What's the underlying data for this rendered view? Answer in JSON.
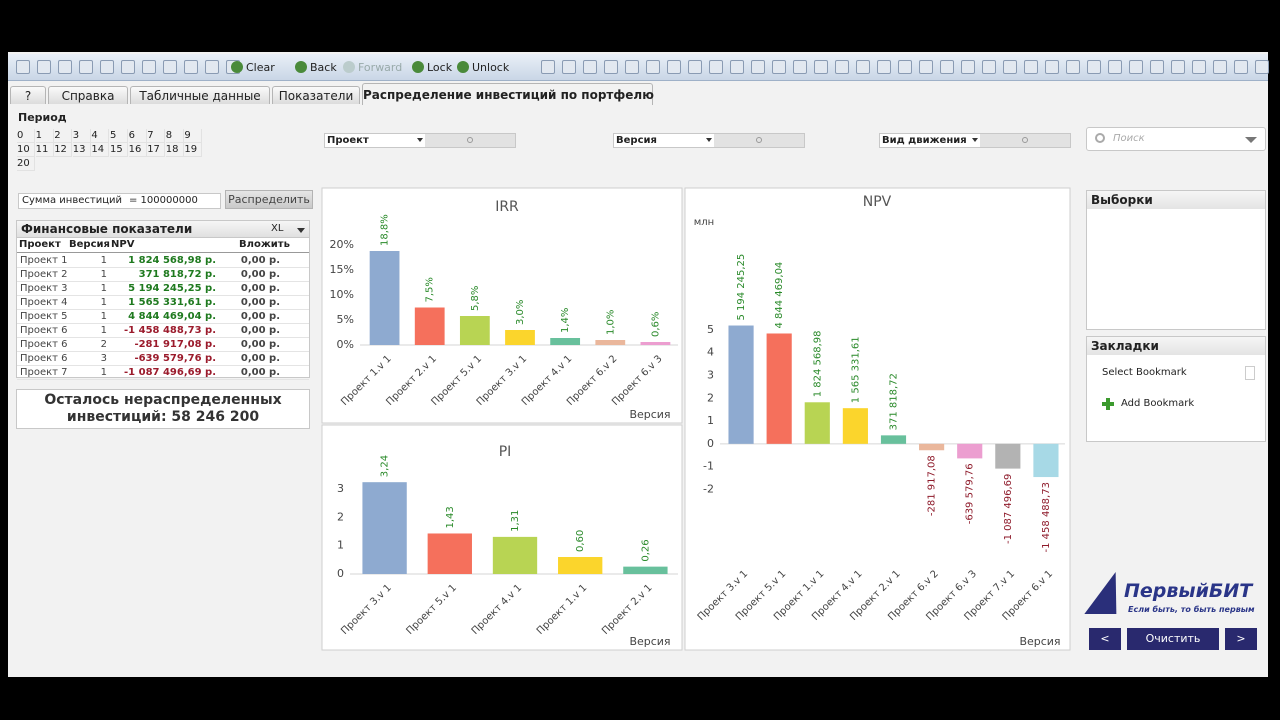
{
  "toolbar": {
    "buttons": [
      "Clear",
      "Back",
      "Forward",
      "Lock",
      "Unlock"
    ]
  },
  "tabs": {
    "items": [
      "?",
      "Справка",
      "Табличные данные",
      "Показатели",
      "Распределение инвестиций по портфелю"
    ],
    "active": 4
  },
  "period": {
    "label": "Период",
    "values": [
      "0",
      "1",
      "2",
      "3",
      "4",
      "5",
      "6",
      "7",
      "8",
      "9",
      "10",
      "11",
      "12",
      "13",
      "14",
      "15",
      "16",
      "17",
      "18",
      "19",
      "20"
    ]
  },
  "filters": [
    "Проект",
    "Версия",
    "Вид движения"
  ],
  "search": {
    "placeholder": "Поиск"
  },
  "investment": {
    "label": "Сумма инвестиций",
    "value": "= 100000000",
    "button": "Распределить"
  },
  "table": {
    "title": "Финансовые показатели",
    "export": "XL",
    "columns": [
      "Проект",
      "Версия",
      "NPV",
      "Вложить"
    ],
    "rows": [
      [
        "Проект 1",
        "1",
        "1 824 568,98 р.",
        "0,00 р."
      ],
      [
        "Проект 2",
        "1",
        "371 818,72 р.",
        "0,00 р."
      ],
      [
        "Проект 3",
        "1",
        "5 194 245,25 р.",
        "0,00 р."
      ],
      [
        "Проект 4",
        "1",
        "1 565 331,61 р.",
        "0,00 р."
      ],
      [
        "Проект 5",
        "1",
        "4 844 469,04 р.",
        "0,00 р."
      ],
      [
        "Проект 6",
        "1",
        "-1 458 488,73 р.",
        "0,00 р."
      ],
      [
        "Проект 6",
        "2",
        "-281 917,08 р.",
        "0,00 р."
      ],
      [
        "Проект 6",
        "3",
        "-639 579,76 р.",
        "0,00 р."
      ],
      [
        "Проект 7",
        "1",
        "-1 087 496,69 р.",
        "0,00 р."
      ]
    ]
  },
  "remaining": {
    "lines": [
      "Осталось нераспределенных",
      "инвестиций: 58 246 200"
    ]
  },
  "chart_data": [
    {
      "type": "bar",
      "title": "IRR",
      "x_label": "Версия",
      "categories": [
        "Проект 1.v 1",
        "Проект 2.v 1",
        "Проект 5.v 1",
        "Проект 3.v 1",
        "Проект 4.v 1",
        "Проект 6.v 2",
        "Проект 6.v 3"
      ],
      "values": [
        18.8,
        7.5,
        5.8,
        3.0,
        1.4,
        1.0,
        0.6
      ],
      "value_labels": [
        "18,8%",
        "7,5%",
        "5,8%",
        "3,0%",
        "1,4%",
        "1,0%",
        "0,6%"
      ],
      "colors": [
        "#8eaad0",
        "#f5705c",
        "#b8d453",
        "#fbd52c",
        "#68c09c",
        "#eab79c",
        "#ec9ed0"
      ],
      "ylim": [
        0,
        21
      ],
      "yticks": [
        {
          "value": 0,
          "label": "0%"
        },
        {
          "value": 5,
          "label": "5%"
        },
        {
          "value": 10,
          "label": "10%"
        },
        {
          "value": 15,
          "label": "15%"
        },
        {
          "value": 20,
          "label": "20%"
        }
      ]
    },
    {
      "type": "bar",
      "title": "PI",
      "x_label": "Версия",
      "categories": [
        "Проект 3.v 1",
        "Проект 5.v 1",
        "Проект 4.v 1",
        "Проект 1.v 1",
        "Проект 2.v 1"
      ],
      "values": [
        3.24,
        1.43,
        1.31,
        0.6,
        0.26
      ],
      "value_labels": [
        "3,24",
        "1,43",
        "1,31",
        "0,60",
        "0,26"
      ],
      "colors": [
        "#8eaad0",
        "#f5705c",
        "#b8d453",
        "#fbd52c",
        "#68c09c"
      ],
      "ylim": [
        0,
        3.67
      ],
      "yticks": [
        0,
        1,
        2,
        3
      ]
    },
    {
      "type": "bar",
      "title": "NPV",
      "x_label": "Версия",
      "y_label": "млн",
      "categories": [
        "Проект 3.v 1",
        "Проект 5.v 1",
        "Проект 1.v 1",
        "Проект 4.v 1",
        "Проект 2.v 1",
        "Проект 6.v 2",
        "Проект 6.v 3",
        "Проект 7.v 1",
        "Проект 6.v 1"
      ],
      "values": [
        5.19424525,
        4.84446904,
        1.82456898,
        1.56533161,
        0.37181872,
        -0.28191708,
        -0.63957976,
        -1.08749669,
        -1.45848873
      ],
      "value_labels": [
        "5 194 245,25",
        "4 844 469,04",
        "1 824 568,98",
        "1 565 331,61",
        "371 818,72",
        "-281 917,08",
        "-639 579,76",
        "-1 087 496,69",
        "-1 458 488,73"
      ],
      "colors": [
        "#8eaad0",
        "#f5705c",
        "#b8d453",
        "#fbd52c",
        "#68c09c",
        "#eab79c",
        "#ec9ed0",
        "#b3b3b3",
        "#a7d9e6"
      ],
      "ylim": [
        -5.1,
        9.3
      ],
      "yticks": [
        -2,
        -1,
        0,
        1,
        2,
        3,
        4,
        5
      ]
    }
  ],
  "selections": {
    "title": "Выборки"
  },
  "bookmarks": {
    "title": "Закладки",
    "select": "Select Bookmark",
    "add": "Add Bookmark"
  },
  "logo": {
    "name": "ПервыйБИТ",
    "slogan": "Если быть, то быть первым"
  },
  "nav": [
    "<",
    "Очистить",
    ">"
  ]
}
